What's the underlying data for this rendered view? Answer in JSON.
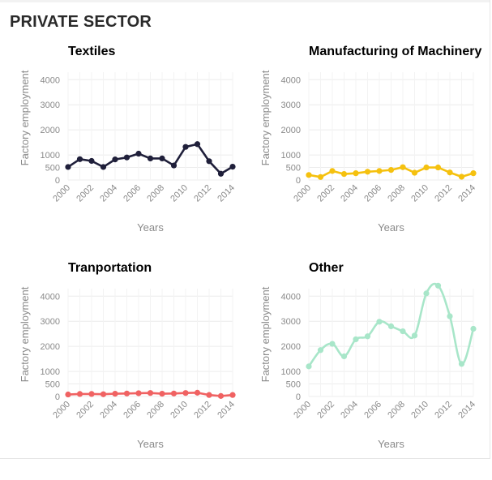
{
  "section": {
    "title": "PRIVATE SECTOR"
  },
  "chart_data": [
    {
      "type": "line",
      "title": "Textiles",
      "color": "#1f1f3a",
      "xlabel": "Years",
      "ylabel": "Factory employment",
      "x": [
        2000,
        2001,
        2002,
        2003,
        2004,
        2005,
        2006,
        2007,
        2008,
        2009,
        2010,
        2011,
        2012,
        2013,
        2014
      ],
      "values": [
        520,
        830,
        760,
        520,
        820,
        900,
        1050,
        860,
        860,
        580,
        1320,
        1430,
        750,
        250,
        530
      ],
      "ylim": [
        0,
        4300
      ],
      "yticks": [
        0,
        500,
        1000,
        2000,
        3000,
        4000
      ],
      "xticks": [
        "2000",
        "2002",
        "2004",
        "2006",
        "2008",
        "2010",
        "2012",
        "2014"
      ],
      "curve": "linear"
    },
    {
      "type": "line",
      "title": "Manufacturing of Machinery",
      "color": "#f5c10f",
      "xlabel": "Years",
      "ylabel": "Factory employment",
      "x": [
        2000,
        2001,
        2002,
        2003,
        2004,
        2005,
        2006,
        2007,
        2008,
        2009,
        2010,
        2011,
        2012,
        2013,
        2014
      ],
      "values": [
        200,
        120,
        360,
        240,
        270,
        330,
        360,
        400,
        510,
        290,
        500,
        500,
        300,
        130,
        270
      ],
      "ylim": [
        0,
        4300
      ],
      "yticks": [
        0,
        500,
        1000,
        2000,
        3000,
        4000
      ],
      "xticks": [
        "2000",
        "2002",
        "2004",
        "2006",
        "2008",
        "2010",
        "2012",
        "2014"
      ],
      "curve": "linear"
    },
    {
      "type": "line",
      "title": "Tranportation",
      "color": "#f06262",
      "xlabel": "Years",
      "ylabel": "Factory employment",
      "x": [
        2000,
        2001,
        2002,
        2003,
        2004,
        2005,
        2006,
        2007,
        2008,
        2009,
        2010,
        2011,
        2012,
        2013,
        2014
      ],
      "values": [
        80,
        100,
        100,
        90,
        110,
        120,
        130,
        140,
        110,
        120,
        140,
        150,
        60,
        20,
        60
      ],
      "ylim": [
        0,
        4300
      ],
      "yticks": [
        0,
        500,
        1000,
        2000,
        3000,
        4000
      ],
      "xticks": [
        "2000",
        "2002",
        "2004",
        "2006",
        "2008",
        "2010",
        "2012",
        "2014"
      ],
      "curve": "linear"
    },
    {
      "type": "line",
      "title": "Other",
      "color": "#a8e6c9",
      "xlabel": "Years",
      "ylabel": "Factory employment",
      "x": [
        2000,
        2001,
        2002,
        2003,
        2004,
        2005,
        2006,
        2007,
        2008,
        2009,
        2010,
        2011,
        2012,
        2013,
        2014
      ],
      "values": [
        1200,
        1850,
        2100,
        1600,
        2280,
        2400,
        2980,
        2800,
        2600,
        2430,
        4110,
        4420,
        3200,
        1300,
        2700
      ],
      "ylim": [
        0,
        4300
      ],
      "yticks": [
        0,
        500,
        1000,
        2000,
        3000,
        4000
      ],
      "xticks": [
        "2000",
        "2002",
        "2004",
        "2006",
        "2008",
        "2010",
        "2012",
        "2014"
      ],
      "curve": "smooth"
    }
  ]
}
